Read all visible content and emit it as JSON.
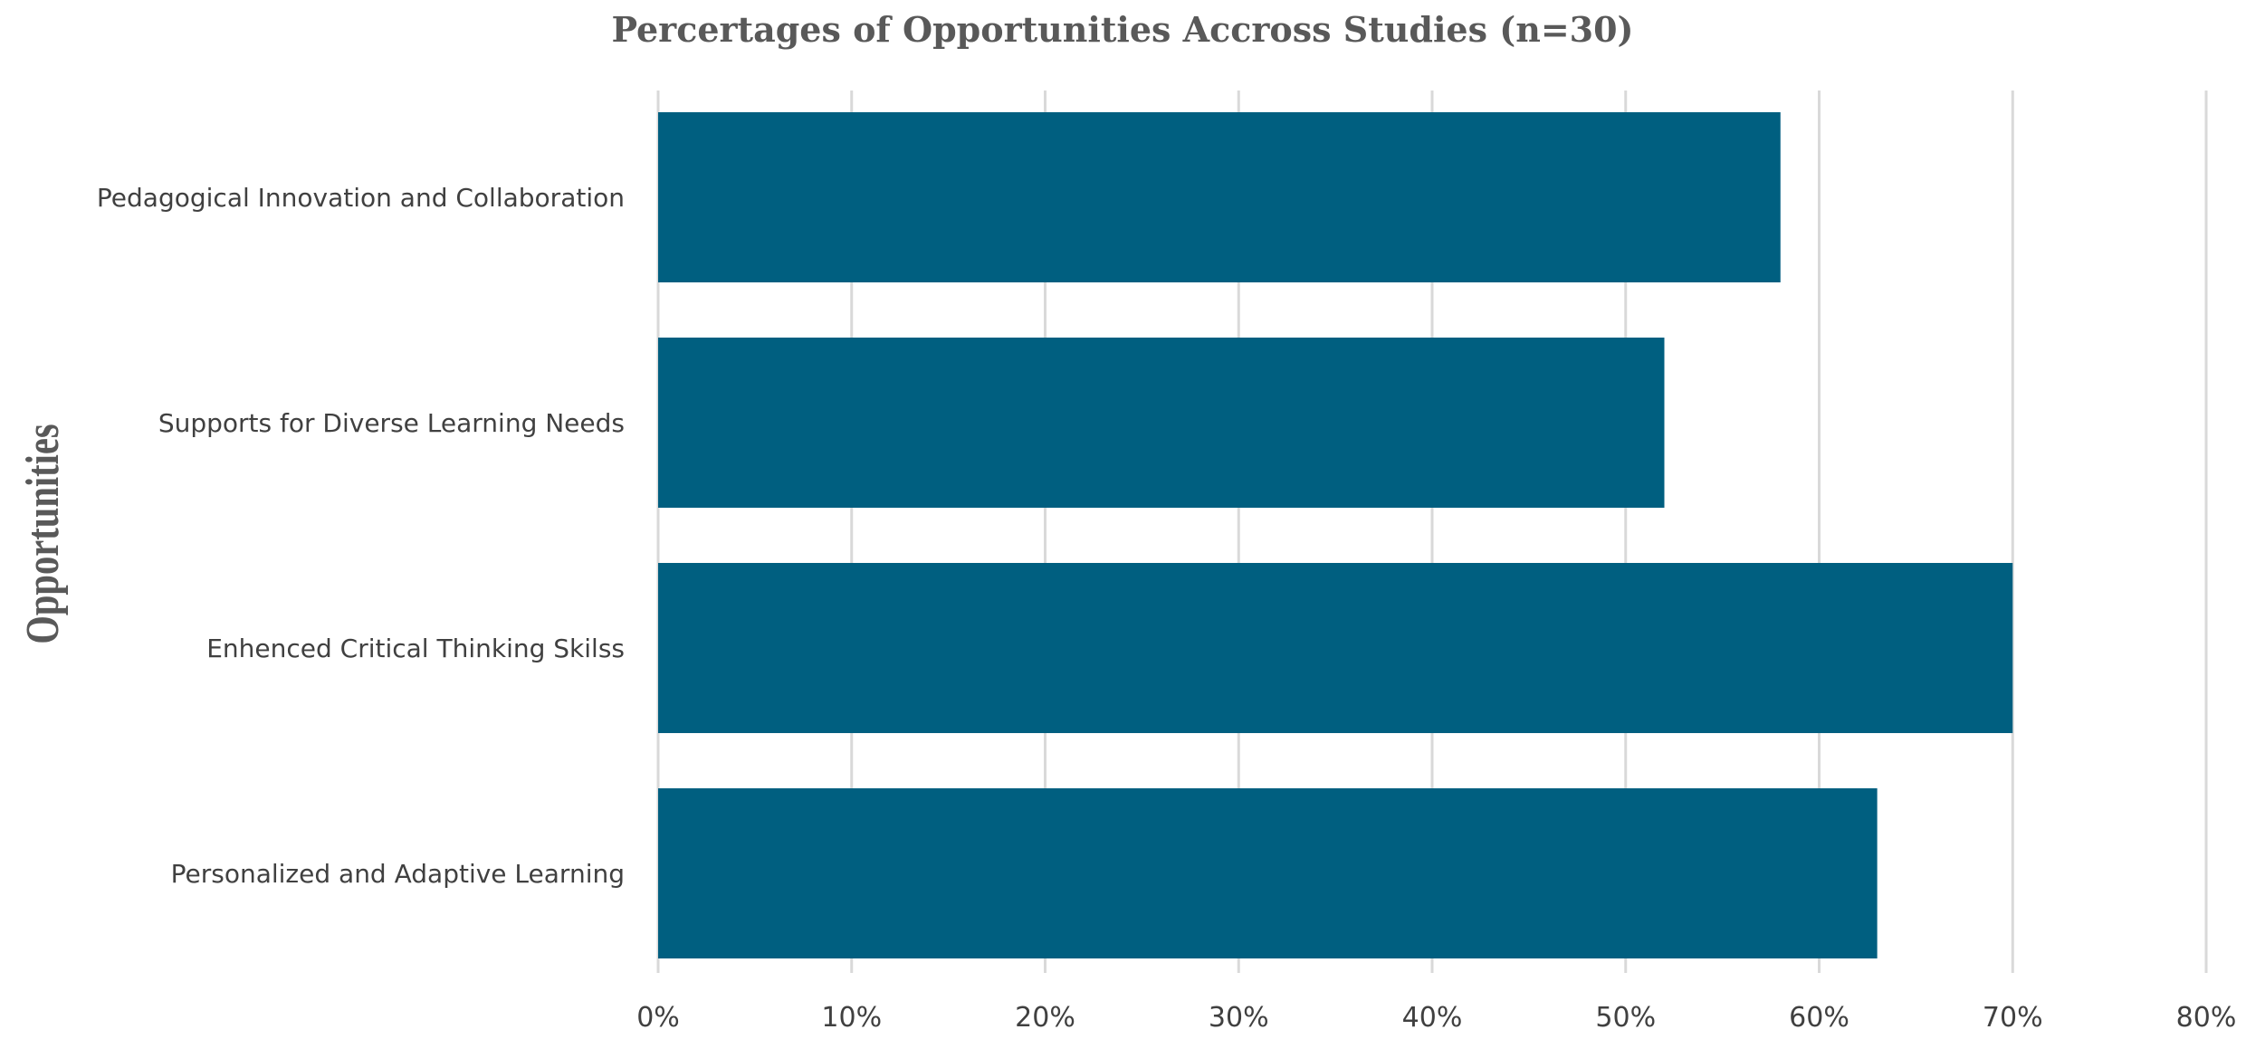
{
  "chart_data": {
    "type": "bar",
    "orientation": "horizontal",
    "title": "Percertages of Opportunities Accross Studies (n=30)",
    "xlabel": "",
    "ylabel": "Opportunities",
    "categories": [
      "Pedagogical Innovation and Collaboration",
      "Supports for Diverse Learning Needs",
      "Enhenced Critical Thinking Skilss",
      "Personalized and Adaptive Learning"
    ],
    "values": [
      58,
      52,
      70,
      63
    ],
    "xlim": [
      0,
      80
    ],
    "xticks": [
      "0%",
      "10%",
      "20%",
      "30%",
      "40%",
      "50%",
      "60%",
      "70%",
      "80%"
    ],
    "value_unit": "%",
    "grid": true,
    "legend": "none",
    "bar_color": "#005F80"
  }
}
